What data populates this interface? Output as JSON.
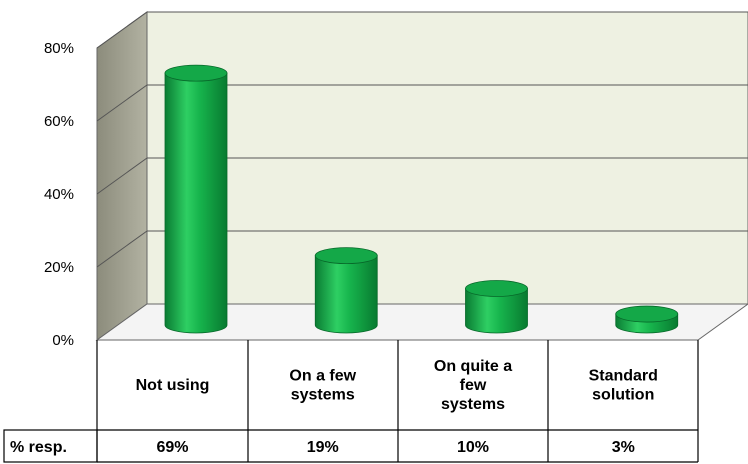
{
  "chart_data": {
    "type": "bar",
    "categories": [
      [
        "Not using"
      ],
      [
        "On a few",
        "systems"
      ],
      [
        "On quite a",
        "few",
        "systems"
      ],
      [
        "Standard",
        "solution"
      ]
    ],
    "values": [
      69,
      19,
      10,
      3
    ],
    "value_labels": [
      "69%",
      "19%",
      "10%",
      "3%"
    ],
    "series_row_label": "% resp.",
    "yticks": [
      "0%",
      "20%",
      "40%",
      "60%",
      "80%"
    ],
    "ylim": [
      0,
      80
    ],
    "grid": true,
    "legend": "none",
    "data_table": true,
    "bar_color": "#11a847",
    "wall_color": "#eef1e2",
    "side_wall_color": "#9e9e8e"
  }
}
